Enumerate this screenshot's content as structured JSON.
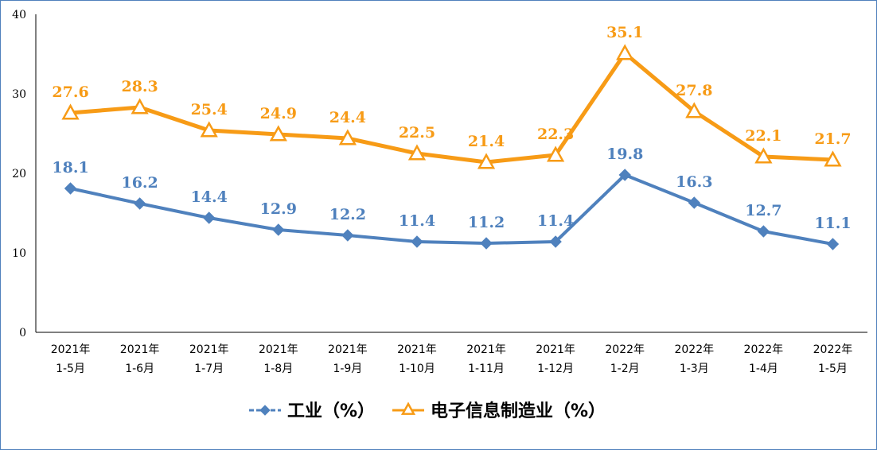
{
  "chart_data": {
    "type": "line",
    "categories": [
      [
        "2021年",
        "1-5月"
      ],
      [
        "2021年",
        "1-6月"
      ],
      [
        "2021年",
        "1-7月"
      ],
      [
        "2021年",
        "1-8月"
      ],
      [
        "2021年",
        "1-9月"
      ],
      [
        "2021年",
        "1-10月"
      ],
      [
        "2021年",
        "1-11月"
      ],
      [
        "2021年",
        "1-12月"
      ],
      [
        "2022年",
        "1-2月"
      ],
      [
        "2022年",
        "1-3月"
      ],
      [
        "2022年",
        "1-4月"
      ],
      [
        "2022年",
        "1-5月"
      ]
    ],
    "series": [
      {
        "name": "工业（%）",
        "color": "#4f81bd",
        "marker": "diamond",
        "values": [
          18.1,
          16.2,
          14.4,
          12.9,
          12.2,
          11.4,
          11.2,
          11.4,
          19.8,
          16.3,
          12.7,
          11.1
        ]
      },
      {
        "name": "电子信息制造业（%）",
        "color": "#f79b16",
        "marker": "triangle",
        "values": [
          27.6,
          28.3,
          25.4,
          24.9,
          24.4,
          22.5,
          21.4,
          22.3,
          35.1,
          27.8,
          22.1,
          21.7
        ]
      }
    ],
    "yticks": [
      0,
      10,
      20,
      30,
      40
    ],
    "ylim": [
      0,
      40
    ],
    "grid": false,
    "legend_position": "bottom"
  }
}
